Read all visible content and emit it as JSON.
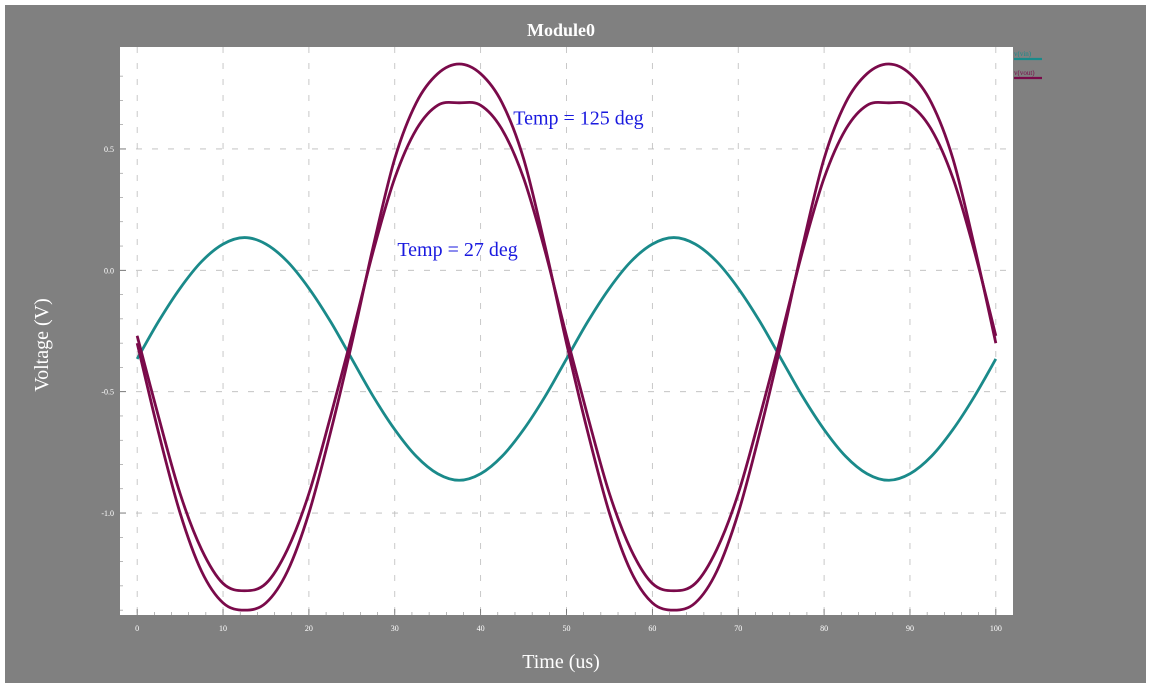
{
  "chart_data": {
    "type": "line",
    "title": "Module0",
    "xlabel": "Time (us)",
    "ylabel": "Voltage (V)",
    "xlim": [
      -2,
      102
    ],
    "ylim": [
      -1.42,
      0.92
    ],
    "xticks": [
      0,
      10,
      20,
      30,
      40,
      50,
      60,
      70,
      80,
      90,
      100
    ],
    "xtick_labels": [
      "0",
      "10",
      "20",
      "30",
      "40",
      "50",
      "60",
      "70",
      "80",
      "90",
      "100"
    ],
    "yticks": [
      -1.0,
      -0.5,
      0.0,
      0.5
    ],
    "ytick_labels": [
      "-1.0",
      "-0.5",
      "0.0",
      "0.5"
    ],
    "grid": true,
    "legend_position": "top-right",
    "series": [
      {
        "name": "v(vin)",
        "color": "#1a8a8a",
        "x": [
          0,
          2.5,
          5,
          7.5,
          10,
          12.5,
          15,
          17.5,
          20,
          22.5,
          25,
          27.5,
          30,
          32.5,
          35,
          37.5,
          40,
          42.5,
          45,
          47.5,
          50,
          52.5,
          55,
          57.5,
          60,
          62.5,
          65,
          67.5,
          70,
          72.5,
          75,
          77.5,
          80,
          82.5,
          85,
          87.5,
          90,
          92.5,
          95,
          97.5,
          100
        ],
        "y": [
          -0.365,
          -0.21,
          -0.074,
          0.036,
          0.108,
          0.135,
          0.108,
          0.036,
          -0.074,
          -0.21,
          -0.365,
          -0.52,
          -0.656,
          -0.766,
          -0.838,
          -0.865,
          -0.838,
          -0.766,
          -0.656,
          -0.52,
          -0.365,
          -0.21,
          -0.074,
          0.036,
          0.108,
          0.135,
          0.108,
          0.036,
          -0.074,
          -0.21,
          -0.365,
          -0.52,
          -0.656,
          -0.766,
          -0.838,
          -0.865,
          -0.838,
          -0.766,
          -0.656,
          -0.52,
          -0.365
        ]
      },
      {
        "name": "v(vout)",
        "color": "#7a0a4a",
        "x": [
          0,
          2.5,
          5,
          7.5,
          10,
          12.5,
          15,
          17.5,
          20,
          22.5,
          25,
          27.5,
          30,
          32.5,
          35,
          37.5,
          40,
          42.5,
          45,
          47.5,
          50,
          52.5,
          55,
          57.5,
          60,
          62.5,
          65,
          67.5,
          70,
          72.5,
          75,
          77.5,
          80,
          82.5,
          85,
          87.5,
          90,
          92.5,
          95,
          97.5,
          100
        ],
        "y": [
          -0.27,
          -0.605,
          -0.92,
          -1.15,
          -1.29,
          -1.32,
          -1.29,
          -1.15,
          -0.92,
          -0.605,
          -0.27,
          0.08,
          0.38,
          0.58,
          0.68,
          0.69,
          0.68,
          0.58,
          0.38,
          0.08,
          -0.27,
          -0.605,
          -0.92,
          -1.15,
          -1.29,
          -1.32,
          -1.29,
          -1.15,
          -0.92,
          -0.605,
          -0.27,
          0.08,
          0.38,
          0.58,
          0.68,
          0.69,
          0.68,
          0.58,
          0.38,
          0.08,
          -0.27
        ]
      },
      {
        "name": "v(vout)",
        "color": "#7a0a4a",
        "x": [
          0,
          2.5,
          5,
          7.5,
          10,
          12.5,
          15,
          17.5,
          20,
          22.5,
          25,
          27.5,
          30,
          32.5,
          35,
          37.5,
          40,
          42.5,
          45,
          47.5,
          50,
          52.5,
          55,
          57.5,
          60,
          62.5,
          65,
          67.5,
          70,
          72.5,
          75,
          77.5,
          80,
          82.5,
          85,
          87.5,
          90,
          92.5,
          95,
          97.5,
          100
        ],
        "y": [
          -0.3,
          -0.67,
          -1.0,
          -1.24,
          -1.37,
          -1.4,
          -1.37,
          -1.24,
          -1.0,
          -0.67,
          -0.3,
          0.1,
          0.46,
          0.69,
          0.81,
          0.85,
          0.81,
          0.69,
          0.46,
          0.1,
          -0.3,
          -0.67,
          -1.0,
          -1.24,
          -1.37,
          -1.4,
          -1.37,
          -1.24,
          -1.0,
          -0.67,
          -0.3,
          0.1,
          0.46,
          0.69,
          0.81,
          0.85,
          0.81,
          0.69,
          0.46,
          0.1,
          -0.3
        ]
      }
    ],
    "annotations": [
      {
        "text": "Temp = 125 deg",
        "x": 43.8,
        "y": 0.6,
        "color": "#1a1adf"
      },
      {
        "text": "Temp = 27 deg",
        "x": 30.3,
        "y": 0.06,
        "color": "#1a1adf"
      }
    ],
    "legend": [
      {
        "label": "v(vin)",
        "color": "#1a8a8a"
      },
      {
        "label": "v(vout)",
        "color": "#7a0a4a"
      }
    ]
  }
}
